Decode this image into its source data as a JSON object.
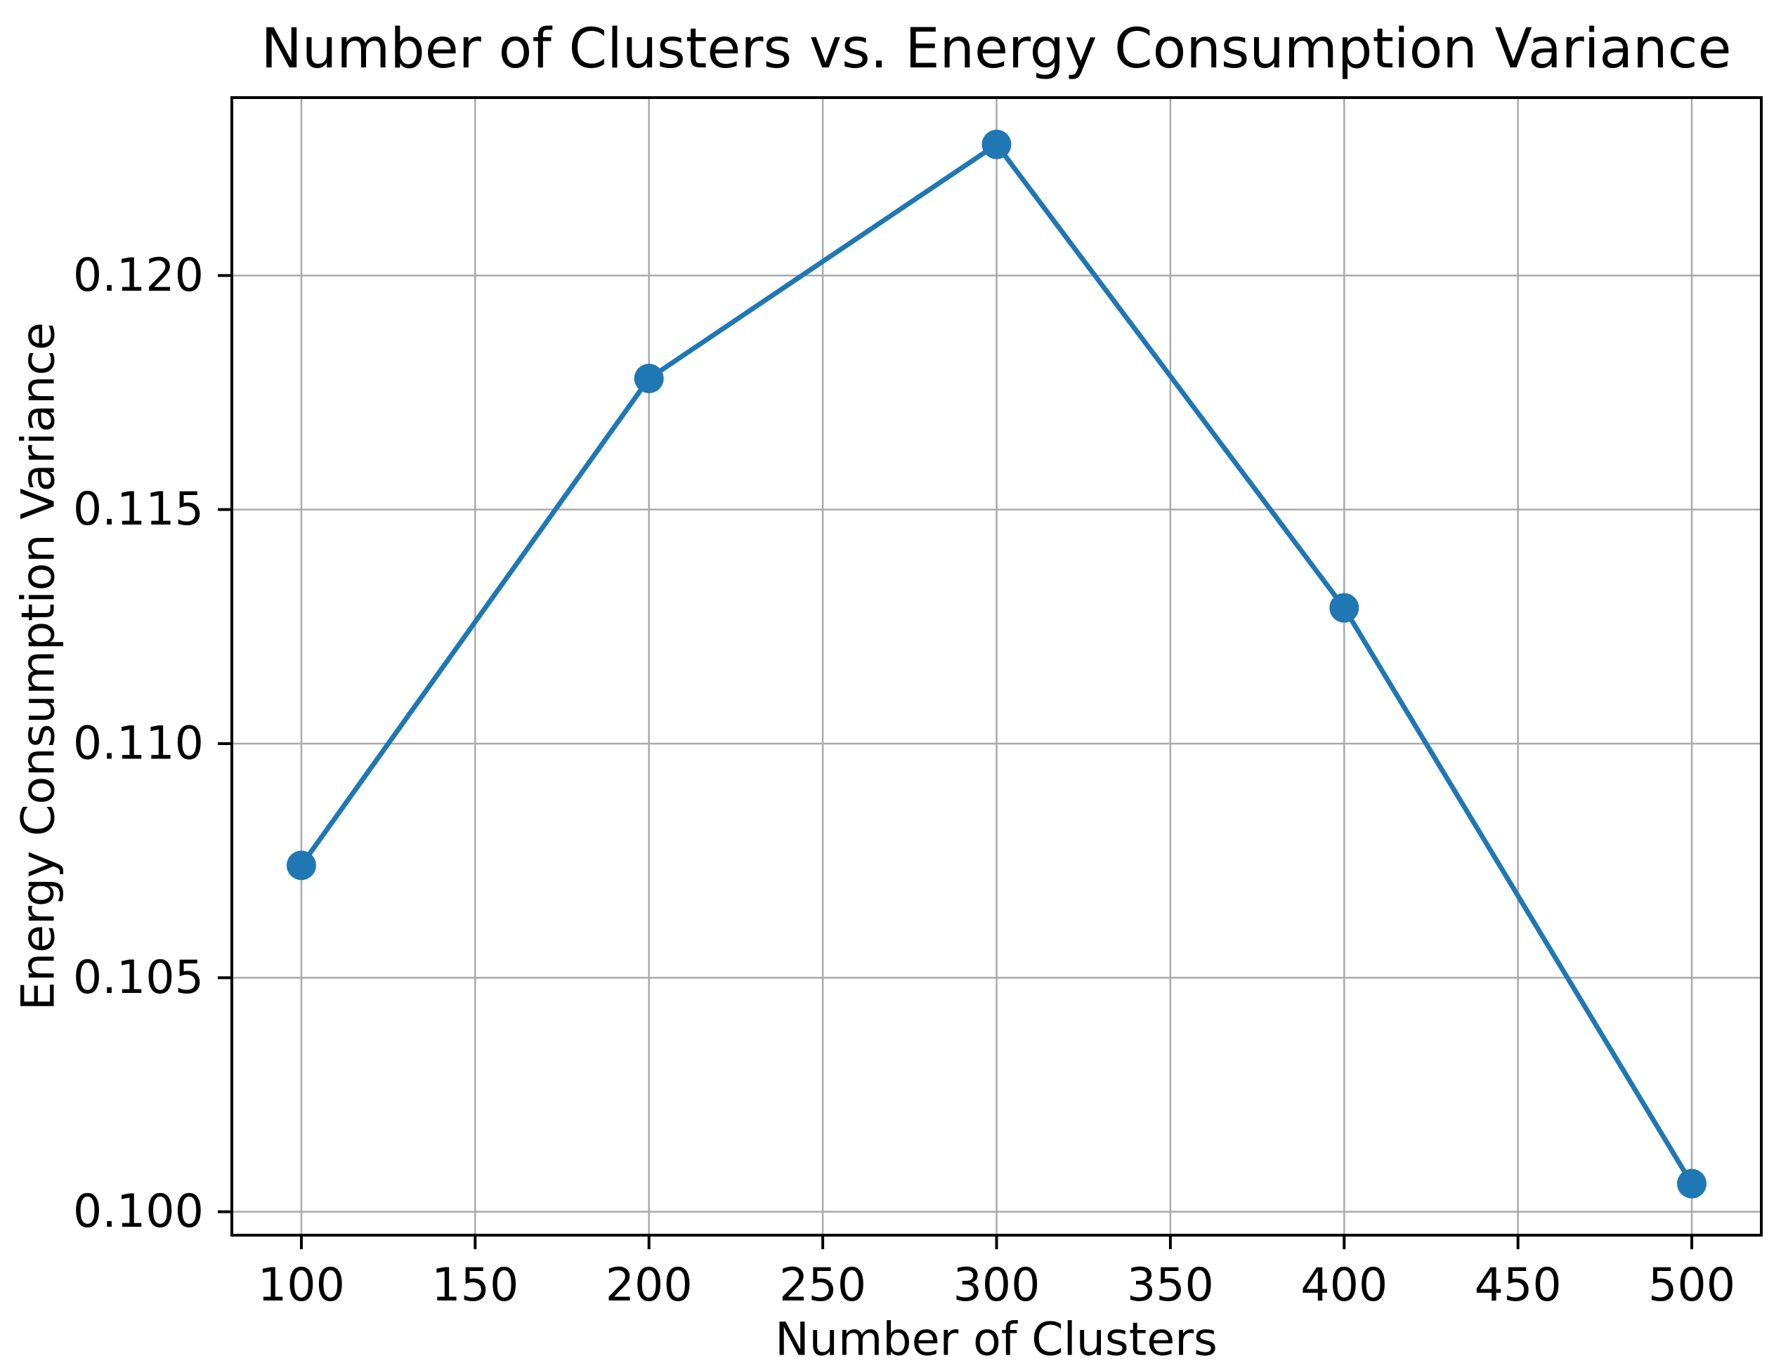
{
  "chart_data": {
    "type": "line",
    "title": "Number of Clusters vs. Energy Consumption Variance",
    "xlabel": "Number of Clusters",
    "ylabel": "Energy Consumption Variance",
    "series": [
      {
        "name": "Energy Consumption Variance",
        "x": [
          100,
          200,
          300,
          400,
          500
        ],
        "y": [
          0.1074,
          0.1178,
          0.1228,
          0.1129,
          0.1006
        ]
      }
    ],
    "xlim": [
      80,
      520
    ],
    "ylim": [
      0.0995,
      0.1238
    ],
    "xticks": [
      100,
      150,
      200,
      250,
      300,
      350,
      400,
      450,
      500
    ],
    "xtick_labels": [
      "100",
      "150",
      "200",
      "250",
      "300",
      "350",
      "400",
      "450",
      "500"
    ],
    "yticks": [
      0.1,
      0.105,
      0.11,
      0.115,
      0.12
    ],
    "ytick_labels": [
      "0.100",
      "0.105",
      "0.110",
      "0.115",
      "0.120"
    ],
    "grid": true,
    "legend": null,
    "marker": "circle",
    "line_color": "#1f77b4",
    "grid_color": "#aaaaaa",
    "axis_color": "#000000",
    "text_color": "#000000",
    "background_color": "#ffffff"
  }
}
